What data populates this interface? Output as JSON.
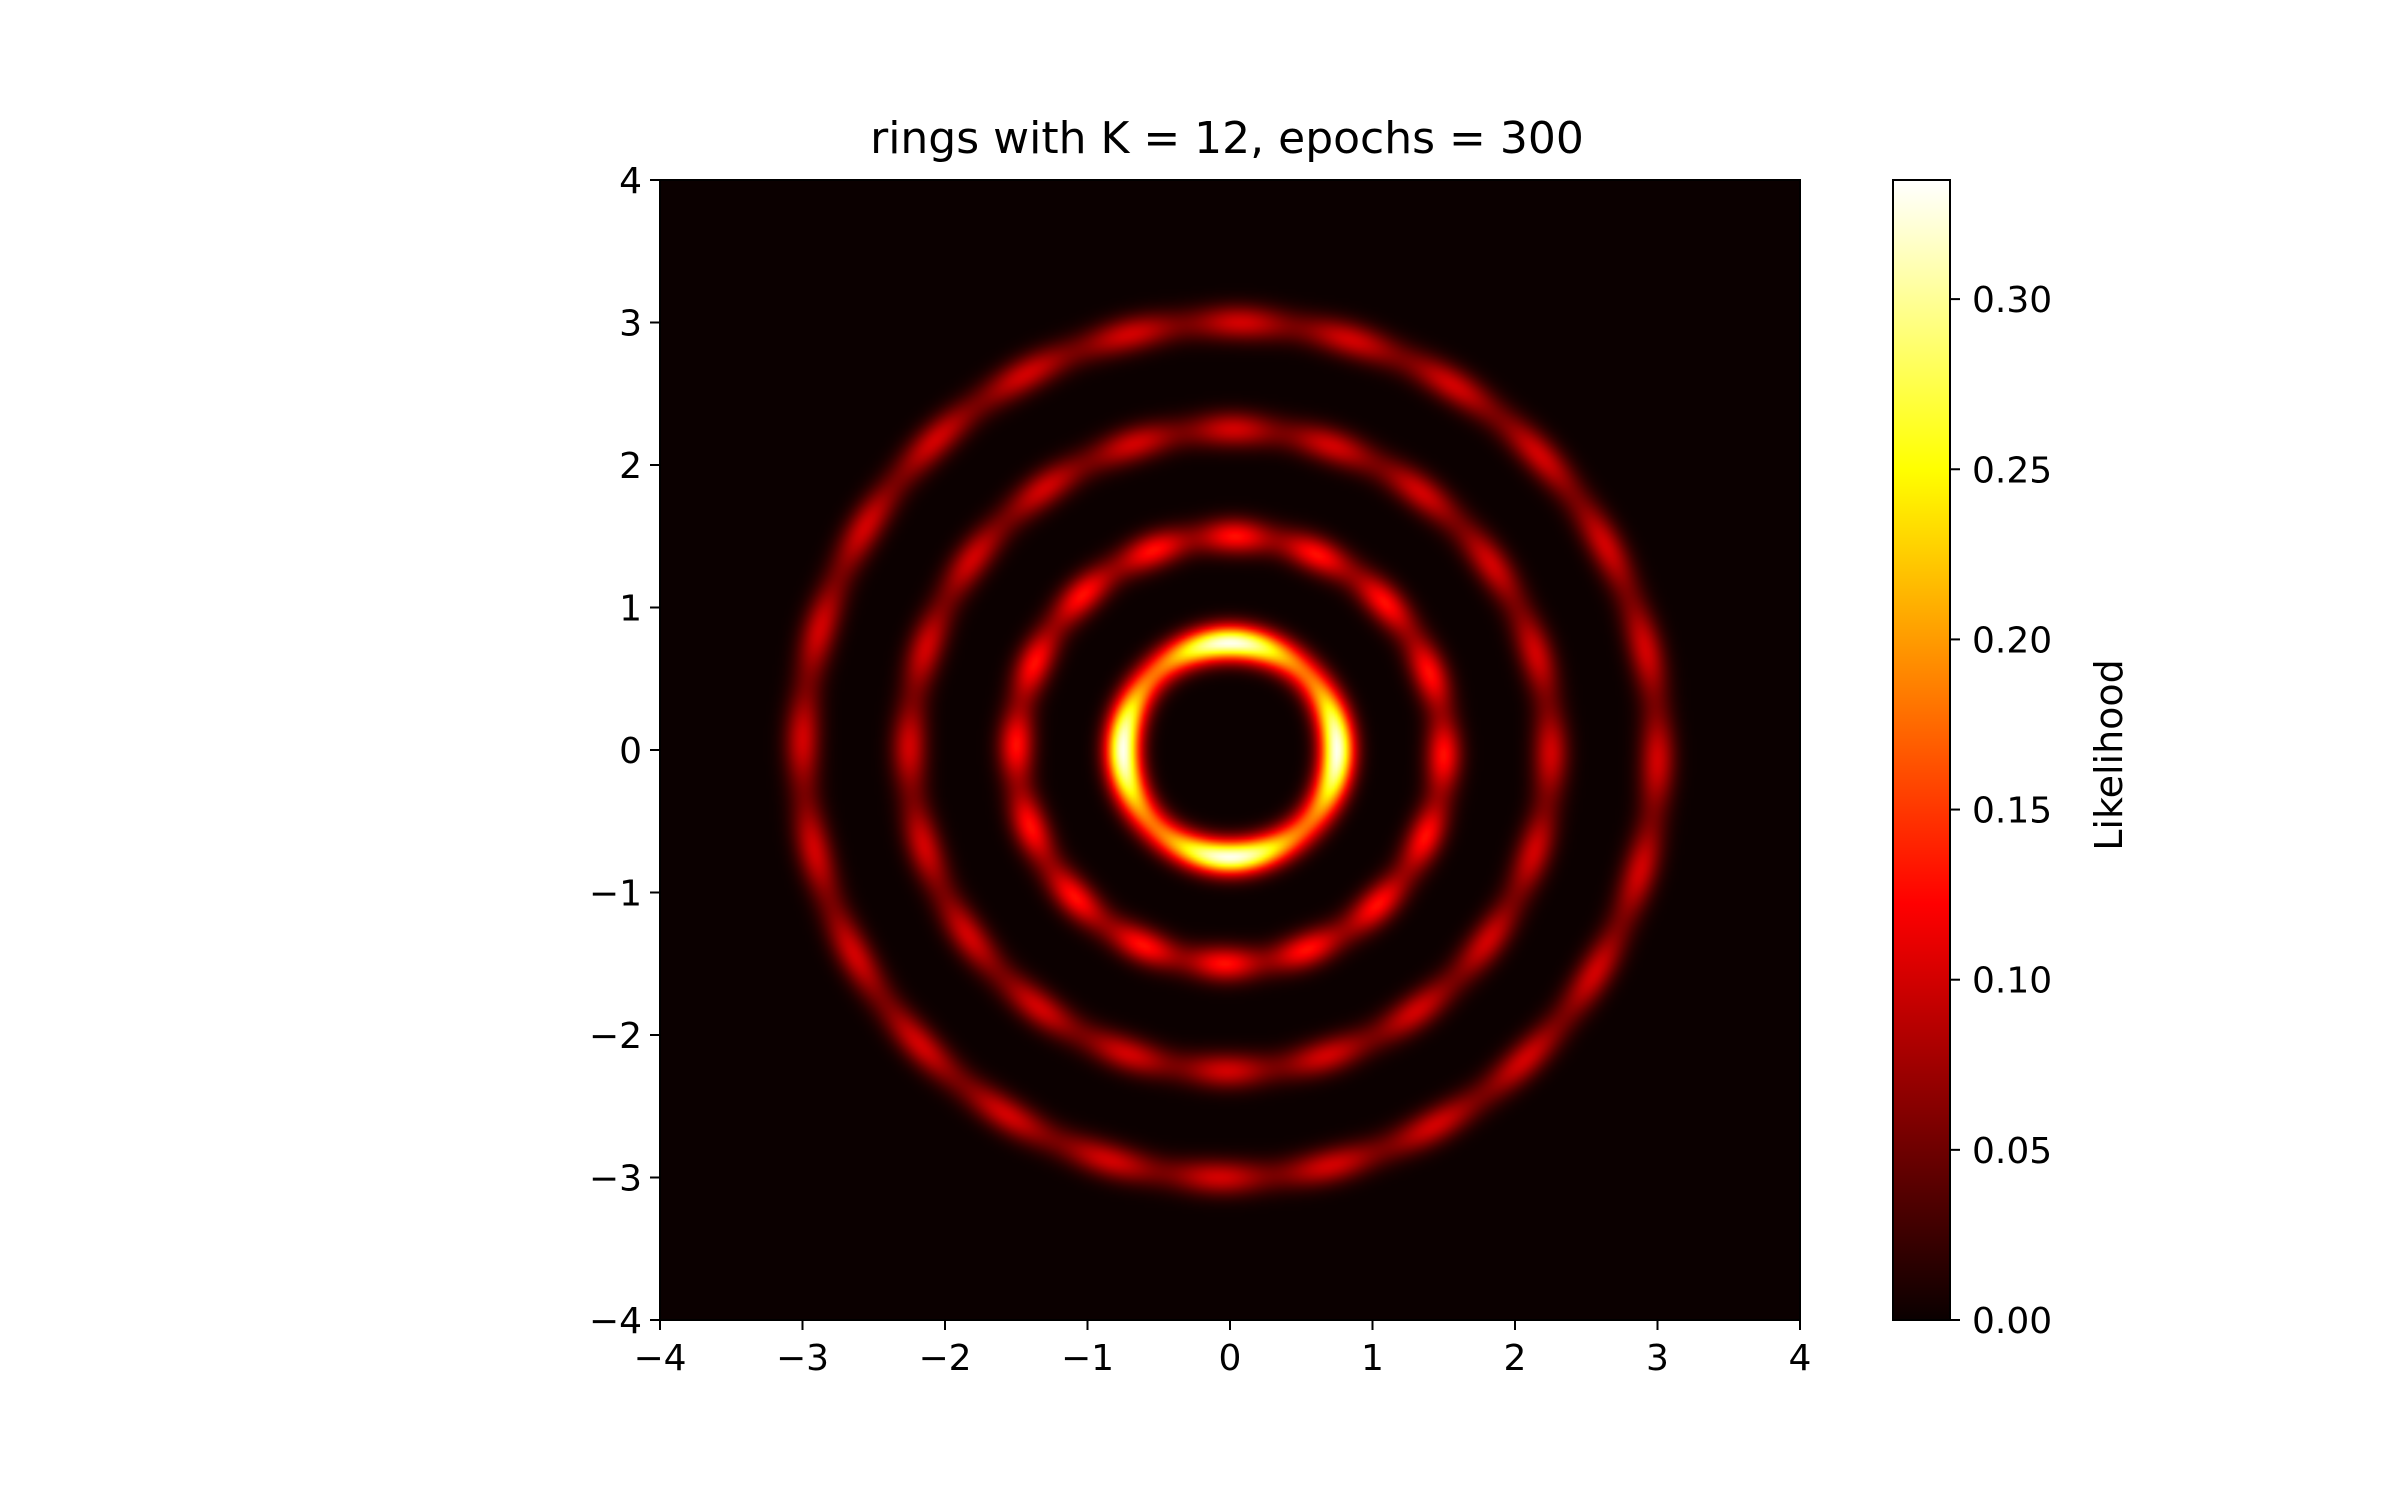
{
  "chart_data": {
    "type": "heatmap",
    "title": "rings with K = 12, epochs = 300",
    "xlabel": "",
    "ylabel": "",
    "xlim": [
      -4,
      4
    ],
    "ylim": [
      -4,
      4
    ],
    "x_ticks": [
      -4,
      -3,
      -2,
      -1,
      0,
      1,
      2,
      3,
      4
    ],
    "y_ticks": [
      -4,
      -3,
      -2,
      -1,
      0,
      1,
      2,
      3,
      4
    ],
    "x_tick_labels": [
      "−4",
      "−3",
      "−2",
      "−1",
      "0",
      "1",
      "2",
      "3",
      "4"
    ],
    "y_tick_labels": [
      "−4",
      "−3",
      "−2",
      "−1",
      "0",
      "1",
      "2",
      "3",
      "4"
    ],
    "colormap": "hot",
    "colorbar": {
      "label": "Likelihood",
      "min": 0.0,
      "max": 0.335,
      "ticks": [
        0.0,
        0.05,
        0.1,
        0.15,
        0.2,
        0.25,
        0.3
      ],
      "tick_labels": [
        "0.00",
        "0.05",
        "0.10",
        "0.15",
        "0.20",
        "0.25",
        "0.30"
      ]
    },
    "rings": [
      {
        "radius": 0.75,
        "peak": 0.33,
        "lobes": 4,
        "lobe_phase": 0.0
      },
      {
        "radius": 1.5,
        "peak": 0.13,
        "lobes": 16,
        "lobe_phase": 0.2
      },
      {
        "radius": 2.25,
        "peak": 0.1,
        "lobes": 20,
        "lobe_phase": 0.1
      },
      {
        "radius": 3.0,
        "peak": 0.1,
        "lobes": 24,
        "lobe_phase": 0.3
      }
    ],
    "grid": false,
    "legend": "none"
  }
}
